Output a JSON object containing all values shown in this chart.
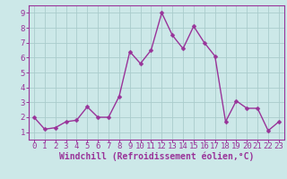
{
  "x": [
    0,
    1,
    2,
    3,
    4,
    5,
    6,
    7,
    8,
    9,
    10,
    11,
    12,
    13,
    14,
    15,
    16,
    17,
    18,
    19,
    20,
    21,
    22,
    23
  ],
  "y": [
    2.0,
    1.2,
    1.3,
    1.7,
    1.8,
    2.7,
    2.0,
    2.0,
    3.4,
    6.4,
    5.6,
    6.5,
    9.0,
    7.5,
    6.6,
    8.1,
    7.0,
    6.1,
    1.7,
    3.1,
    2.6,
    2.6,
    1.1,
    1.7
  ],
  "line_color": "#993399",
  "marker_color": "#993399",
  "bg_color": "#cce8e8",
  "grid_color": "#aacccc",
  "axis_bg_color": "#cce8e8",
  "xlabel": "Windchill (Refroidissement éolien,°C)",
  "xlabel_color": "#993399",
  "tick_color": "#993399",
  "spine_color": "#993399",
  "xlim": [
    -0.5,
    23.5
  ],
  "ylim": [
    0.5,
    9.5
  ],
  "yticks": [
    1,
    2,
    3,
    4,
    5,
    6,
    7,
    8,
    9
  ],
  "xticks": [
    0,
    1,
    2,
    3,
    4,
    5,
    6,
    7,
    8,
    9,
    10,
    11,
    12,
    13,
    14,
    15,
    16,
    17,
    18,
    19,
    20,
    21,
    22,
    23
  ],
  "linewidth": 1.0,
  "markersize": 2.5,
  "tick_fontsize": 6.5,
  "xlabel_fontsize": 7.0
}
